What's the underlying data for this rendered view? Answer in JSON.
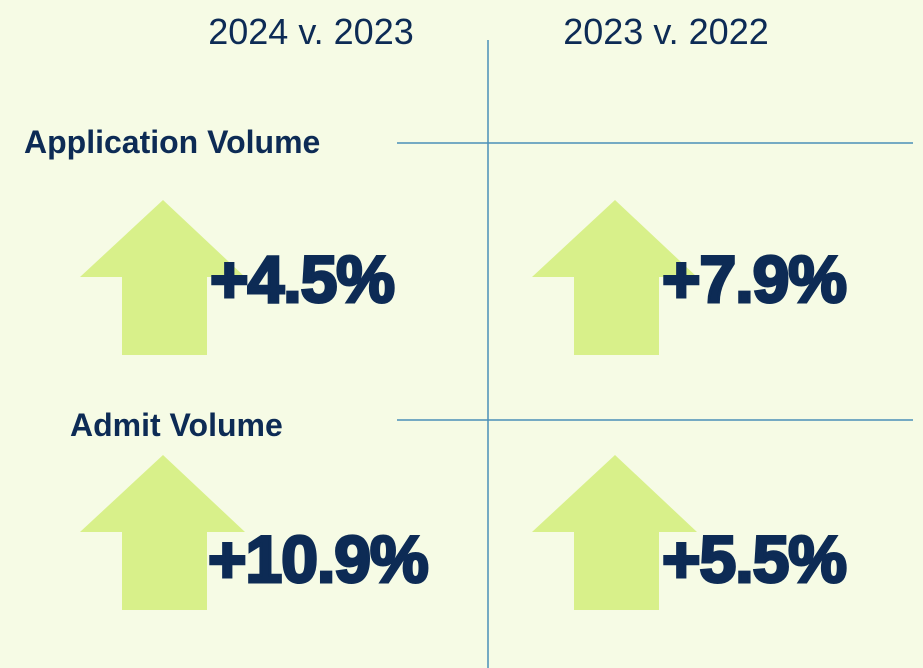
{
  "columns": [
    "2024 v. 2023",
    "2023 v. 2022"
  ],
  "rows": [
    {
      "label": "Application Volume",
      "values": [
        "+4.5%",
        "+7.9%"
      ]
    },
    {
      "label": "Admit Volume",
      "values": [
        "+10.9%",
        "+5.5%"
      ]
    }
  ]
}
